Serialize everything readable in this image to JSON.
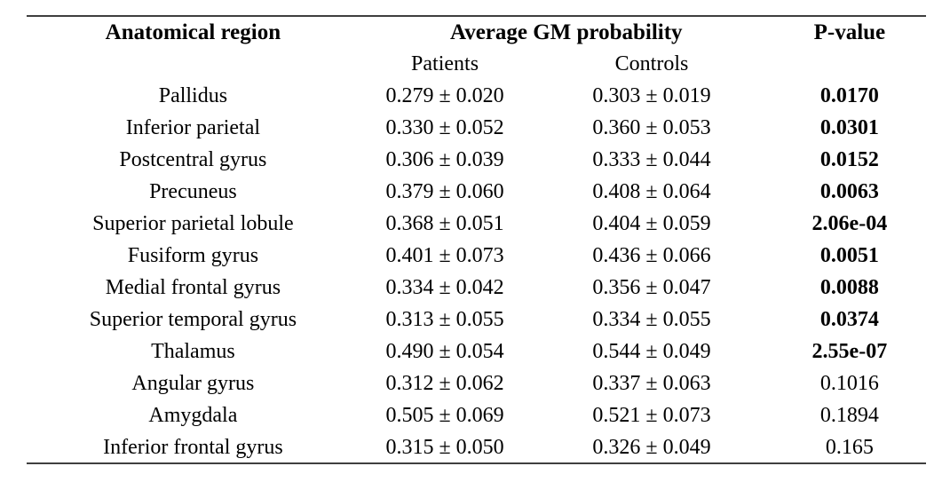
{
  "table": {
    "columns": {
      "region": "Anatomical region",
      "gm_probability": "Average GM probability",
      "p_value": "P-value"
    },
    "subcolumns": {
      "patients": "Patients",
      "controls": "Controls"
    },
    "rows": [
      {
        "region": "Pallidus",
        "patients": "0.279 ± 0.020",
        "controls": "0.303 ± 0.019",
        "p_value": "0.0170",
        "p_value_bold": true
      },
      {
        "region": "Inferior parietal",
        "patients": "0.330 ± 0.052",
        "controls": "0.360 ± 0.053",
        "p_value": "0.0301",
        "p_value_bold": true
      },
      {
        "region": "Postcentral gyrus",
        "patients": "0.306 ± 0.039",
        "controls": "0.333 ± 0.044",
        "p_value": "0.0152",
        "p_value_bold": true
      },
      {
        "region": "Precuneus",
        "patients": "0.379 ± 0.060",
        "controls": "0.408 ± 0.064",
        "p_value": "0.0063",
        "p_value_bold": true
      },
      {
        "region": "Superior parietal lobule",
        "patients": "0.368 ± 0.051",
        "controls": "0.404 ± 0.059",
        "p_value": "2.06e-04",
        "p_value_bold": true
      },
      {
        "region": "Fusiform gyrus",
        "patients": "0.401 ± 0.073",
        "controls": "0.436 ± 0.066",
        "p_value": "0.0051",
        "p_value_bold": true
      },
      {
        "region": "Medial frontal gyrus",
        "patients": "0.334 ± 0.042",
        "controls": "0.356 ± 0.047",
        "p_value": "0.0088",
        "p_value_bold": true
      },
      {
        "region": "Superior temporal gyrus",
        "patients": "0.313 ± 0.055",
        "controls": "0.334 ± 0.055",
        "p_value": "0.0374",
        "p_value_bold": true
      },
      {
        "region": "Thalamus",
        "patients": "0.490 ± 0.054",
        "controls": "0.544 ± 0.049",
        "p_value": "2.55e-07",
        "p_value_bold": true
      },
      {
        "region": "Angular gyrus",
        "patients": "0.312 ± 0.062",
        "controls": "0.337 ± 0.063",
        "p_value": "0.1016",
        "p_value_bold": false
      },
      {
        "region": "Amygdala",
        "patients": "0.505 ± 0.069",
        "controls": "0.521 ± 0.073",
        "p_value": "0.1894",
        "p_value_bold": false
      },
      {
        "region": "Inferior frontal gyrus",
        "patients": "0.315 ± 0.050",
        "controls": "0.326 ± 0.049",
        "p_value": "0.165",
        "p_value_bold": false
      }
    ]
  }
}
